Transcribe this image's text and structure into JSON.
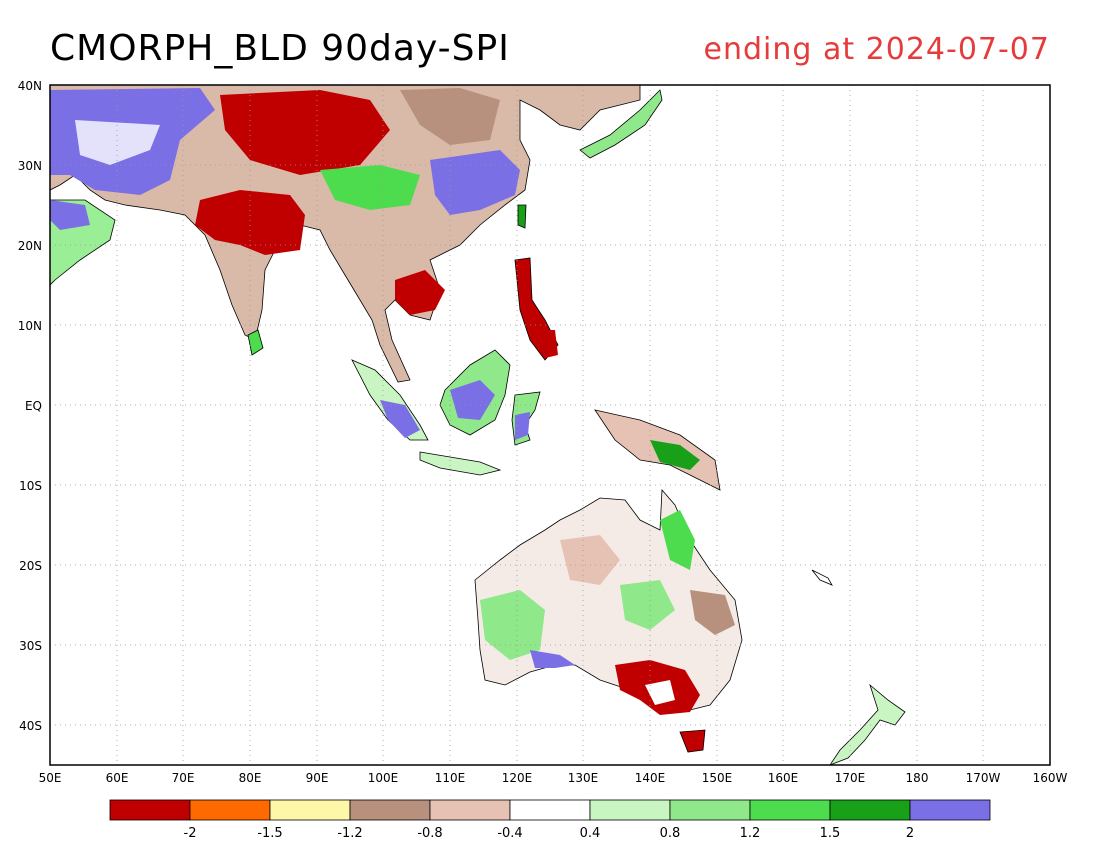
{
  "title": {
    "left": "CMORPH_BLD 90day-SPI",
    "right": "ending at 2024-07-07"
  },
  "map": {
    "lon_range": [
      "50E",
      "160W"
    ],
    "lat_range": [
      "45S",
      "40N"
    ],
    "x_tick_labels": [
      "50E",
      "60E",
      "70E",
      "80E",
      "90E",
      "100E",
      "110E",
      "120E",
      "130E",
      "140E",
      "150E",
      "160E",
      "170E",
      "180",
      "170W",
      "160W"
    ],
    "y_tick_labels": [
      "40N",
      "30N",
      "20N",
      "10N",
      "EQ",
      "10S",
      "20S",
      "30S",
      "40S"
    ],
    "grid": "dotted"
  },
  "colorbar": {
    "colors": [
      "#c00000",
      "#ff6a00",
      "#fff7a8",
      "#b8907e",
      "#e6c2b4",
      "#ffffff",
      "#c9f5c2",
      "#8fe88a",
      "#4ddc4d",
      "#18a018",
      "#7b6fe6"
    ],
    "labels": [
      "-2",
      "-1.5",
      "-1.2",
      "-0.8",
      "-0.4",
      "0.4",
      "0.8",
      "1.2",
      "1.5",
      "2"
    ]
  },
  "legend_colors": {
    "dry_extreme": "#c00000",
    "wet_extreme": "#7b6fe6"
  }
}
